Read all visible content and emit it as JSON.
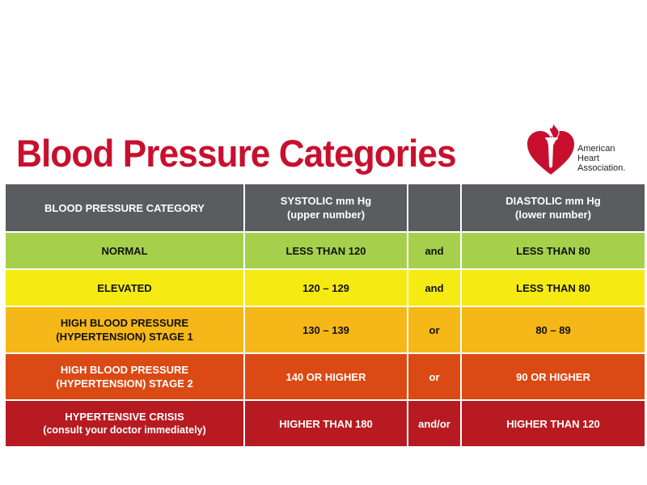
{
  "title": "Blood Pressure Categories",
  "logo": {
    "line1": "American",
    "line2": "Heart",
    "line3": "Association."
  },
  "header": {
    "category": "BLOOD PRESSURE CATEGORY",
    "systolic_line1": "SYSTOLIC mm Hg",
    "systolic_line2": "(upper number)",
    "connector": "",
    "diastolic_line1": "DIASTOLIC mm Hg",
    "diastolic_line2": "(lower number)"
  },
  "rows": [
    {
      "category_line1": "NORMAL",
      "category_line2": "",
      "systolic": "LESS THAN 120",
      "connector": "and",
      "diastolic": "LESS THAN 80",
      "color": "#a6d04c"
    },
    {
      "category_line1": "ELEVATED",
      "category_line2": "",
      "systolic": "120 – 129",
      "connector": "and",
      "diastolic": "LESS THAN 80",
      "color": "#f5ea12"
    },
    {
      "category_line1": "HIGH BLOOD PRESSURE",
      "category_line2": "(HYPERTENSION) STAGE 1",
      "systolic": "130 – 139",
      "connector": "or",
      "diastolic": "80 – 89",
      "color": "#f6b718"
    },
    {
      "category_line1": "HIGH BLOOD PRESSURE",
      "category_line2": "(HYPERTENSION) STAGE 2",
      "systolic": "140 OR HIGHER",
      "connector": "or",
      "diastolic": "90 OR HIGHER",
      "color": "#db4a14"
    },
    {
      "category_line1": "HYPERTENSIVE CRISIS",
      "category_line2": "(consult your doctor immediately)",
      "systolic": "HIGHER THAN 180",
      "connector": "and/or",
      "diastolic": "HIGHER THAN 120",
      "color": "#b71b21"
    }
  ],
  "colors": {
    "title": "#c8102e",
    "header_bg": "#5a5c5f",
    "brand_red": "#c8102e"
  }
}
